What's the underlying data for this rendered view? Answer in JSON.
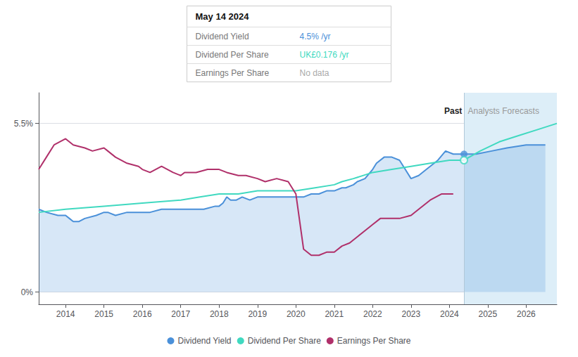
{
  "chart_data": {
    "type": "line",
    "xlim": [
      2013.3,
      2026.8
    ],
    "ylim": [
      -0.004,
      0.065
    ],
    "xticks": [
      2014,
      2015,
      2016,
      2017,
      2018,
      2019,
      2020,
      2021,
      2022,
      2023,
      2024,
      2025,
      2026
    ],
    "yticks": [
      {
        "value": 0.0,
        "label": "0%"
      },
      {
        "value": 0.055,
        "label": "5.5%"
      }
    ],
    "grid": "y",
    "legend": "bottom",
    "forecast_start": 2024.38,
    "shaded_region": {
      "from": 2024.38,
      "to": 2026.8,
      "color": "#ddeef8"
    },
    "series": [
      {
        "name": "Dividend Yield",
        "type": "area",
        "color": "#4a90d9",
        "x": [
          2013.3,
          2013.5,
          2013.8,
          2014.0,
          2014.1,
          2014.2,
          2014.35,
          2014.5,
          2014.8,
          2015.0,
          2015.1,
          2015.3,
          2015.6,
          2015.9,
          2016.2,
          2016.5,
          2016.8,
          2017.0,
          2017.3,
          2017.6,
          2017.9,
          2018.0,
          2018.1,
          2018.2,
          2018.3,
          2018.45,
          2018.6,
          2018.8,
          2019.0,
          2019.1,
          2019.2,
          2019.3,
          2019.5,
          2019.7,
          2019.9,
          2020.0,
          2020.1,
          2020.2,
          2020.4,
          2020.6,
          2020.8,
          2021.0,
          2021.2,
          2021.3,
          2021.5,
          2021.6,
          2021.8,
          2022.0,
          2022.1,
          2022.3,
          2022.5,
          2022.7,
          2022.85,
          2023.0,
          2023.2,
          2023.4,
          2023.7,
          2023.9,
          2024.1,
          2024.38
        ],
        "values": [
          0.027,
          0.026,
          0.025,
          0.025,
          0.024,
          0.023,
          0.023,
          0.024,
          0.025,
          0.026,
          0.026,
          0.025,
          0.026,
          0.026,
          0.026,
          0.027,
          0.027,
          0.027,
          0.027,
          0.027,
          0.028,
          0.028,
          0.029,
          0.031,
          0.03,
          0.03,
          0.031,
          0.03,
          0.031,
          0.031,
          0.031,
          0.031,
          0.031,
          0.031,
          0.031,
          0.031,
          0.031,
          0.031,
          0.032,
          0.032,
          0.033,
          0.033,
          0.034,
          0.034,
          0.035,
          0.036,
          0.037,
          0.04,
          0.042,
          0.044,
          0.044,
          0.043,
          0.04,
          0.037,
          0.038,
          0.04,
          0.043,
          0.046,
          0.045,
          0.045
        ]
      },
      {
        "name": "Dividend Yield",
        "type": "area",
        "color": "#4a90d9",
        "x": [
          2024.38,
          2024.7,
          2025.1,
          2025.5,
          2026.0,
          2026.5
        ],
        "values": [
          0.045,
          0.045,
          0.046,
          0.047,
          0.048,
          0.048
        ]
      },
      {
        "name": "Dividend Per Share",
        "type": "line",
        "color": "#40d9c0",
        "x": [
          2013.3,
          2014.0,
          2015.0,
          2016.0,
          2017.0,
          2017.5,
          2018.0,
          2018.5,
          2019.0,
          2019.5,
          2020.0,
          2020.5,
          2021.0,
          2021.2,
          2021.5,
          2022.0,
          2022.5,
          2023.0,
          2023.5,
          2024.0,
          2024.38
        ],
        "values": [
          0.026,
          0.027,
          0.028,
          0.029,
          0.03,
          0.031,
          0.032,
          0.032,
          0.033,
          0.033,
          0.033,
          0.034,
          0.035,
          0.036,
          0.037,
          0.039,
          0.04,
          0.041,
          0.042,
          0.043,
          0.043
        ]
      },
      {
        "name": "Dividend Per Share",
        "type": "line",
        "color": "#40d9c0",
        "x": [
          2024.38,
          2024.8,
          2025.3,
          2025.8,
          2026.3,
          2026.8
        ],
        "values": [
          0.043,
          0.046,
          0.049,
          0.051,
          0.053,
          0.055
        ]
      },
      {
        "name": "Earnings Per Share",
        "type": "line",
        "color": "#b0306a",
        "x": [
          2013.3,
          2013.5,
          2013.7,
          2014.0,
          2014.2,
          2014.5,
          2014.7,
          2015.0,
          2015.1,
          2015.3,
          2015.6,
          2015.9,
          2016.0,
          2016.2,
          2016.5,
          2016.8,
          2017.0,
          2017.1,
          2017.4,
          2017.7,
          2018.0,
          2018.2,
          2018.5,
          2018.7,
          2019.0,
          2019.2,
          2019.5,
          2019.8,
          2020.0,
          2020.2,
          2020.4,
          2020.6,
          2020.8,
          2021.0,
          2021.2,
          2021.4,
          2021.6,
          2021.8,
          2022.0,
          2022.2,
          2022.5,
          2022.7,
          2023.0,
          2023.2,
          2023.5,
          2023.8,
          2024.1
        ],
        "values": [
          0.04,
          0.044,
          0.048,
          0.05,
          0.048,
          0.047,
          0.046,
          0.047,
          0.046,
          0.044,
          0.042,
          0.041,
          0.04,
          0.039,
          0.041,
          0.039,
          0.038,
          0.039,
          0.039,
          0.04,
          0.04,
          0.039,
          0.038,
          0.038,
          0.037,
          0.036,
          0.037,
          0.036,
          0.032,
          0.014,
          0.012,
          0.012,
          0.013,
          0.013,
          0.015,
          0.016,
          0.018,
          0.02,
          0.022,
          0.024,
          0.024,
          0.024,
          0.025,
          0.027,
          0.03,
          0.032,
          0.032
        ]
      }
    ],
    "points": [
      {
        "x": 2024.38,
        "y": 0.045,
        "color": "#4a90d9",
        "marker": "filled"
      },
      {
        "x": 2024.38,
        "y": 0.043,
        "color": "#40d9c0",
        "marker": "hollow"
      }
    ],
    "annotations": [
      {
        "text": "Past",
        "x": 2024.33,
        "y": 0.059
      },
      {
        "text": "Analysts Forecasts",
        "x": 2024.48,
        "y": 0.059
      }
    ],
    "tooltip": {
      "title": "May 14 2024",
      "rows": [
        {
          "label": "Dividend Yield",
          "value": "4.5% /yr",
          "color": "#4a90d9"
        },
        {
          "label": "Dividend Per Share",
          "value": "UK£0.176 /yr",
          "color": "#40d9c0"
        },
        {
          "label": "Earnings Per Share",
          "value": "No data",
          "color": "#aaaaaa"
        }
      ]
    }
  }
}
